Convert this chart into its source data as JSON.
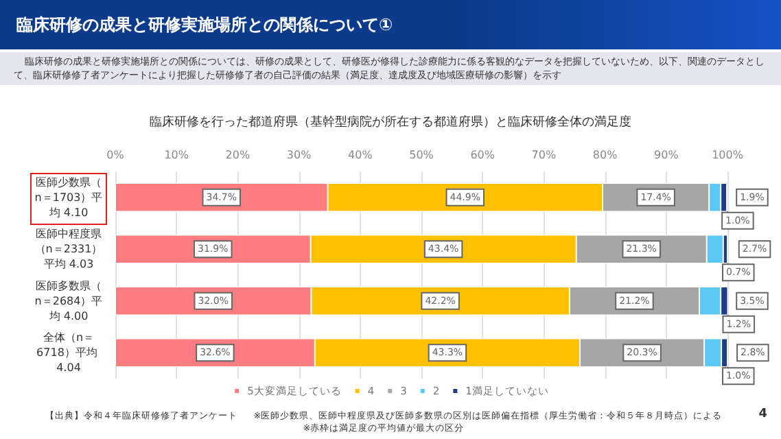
{
  "chart_data": {
    "type": "bar",
    "orientation": "horizontal",
    "stacked": true,
    "title": "臨床研修の成果と研修実施場所との関係について①",
    "subtitle": "臨床研修の成果と研修実施場所との関係については、研修の成果として、研修医が修得した診療能力に係る客観的なデータを把握していないため、以下、関連のデータとして、臨床研修修了者アンケートにより把握した研修修了者の自己評価の結果（満足度、達成度及び地域医療研修の影響）を示す",
    "annotations": [
      "臨床研修を行った都道府県（基幹型病院が所在する都道府県）と臨床研修全体の満足度",
      "【出典】令和４年臨床研修修了者アンケート",
      "※医師少数県、医師中程度県及び医師多数県の区別は医師偏在指標（厚生労働省：令和５年８月時点）による",
      "※赤枠は満足度の平均値が最大の区分",
      "4"
    ],
    "categories": [
      "医師少数県（n＝1703）平均 4.10",
      "医師中程度県（n＝2331）平均 4.03",
      "医師多数県（n＝2684）平均 4.00",
      "全体（n＝6718）平均 4.04"
    ],
    "series": [
      {
        "name": "5大変満足している",
        "color": "#ff7c80",
        "values": [
          34.7,
          31.9,
          32.0,
          32.6
        ],
        "value_labels": [
          "34.7%",
          "31.9%",
          "32.0%",
          "32.6%"
        ]
      },
      {
        "name": "4",
        "color": "#ffc000",
        "values": [
          44.9,
          43.4,
          42.2,
          43.3
        ],
        "value_labels": [
          "44.9%",
          "43.4%",
          "42.2%",
          "43.3%"
        ]
      },
      {
        "name": "3",
        "color": "#a6a6a6",
        "values": [
          17.4,
          21.3,
          21.2,
          20.3
        ],
        "value_labels": [
          "17.4%",
          "21.3%",
          "21.2%",
          "20.3%"
        ]
      },
      {
        "name": "2",
        "color": "#5bc8f5",
        "values": [
          1.9,
          2.7,
          3.5,
          2.8
        ],
        "value_labels": [
          "1.9%",
          "2.7%",
          "3.5%",
          "2.8%"
        ]
      },
      {
        "name": "1満足していない",
        "color": "#1f3c88",
        "values": [
          1.0,
          0.7,
          1.2,
          1.0
        ],
        "value_labels": [
          "1.0%",
          "0.7%",
          "1.2%",
          "1.0%"
        ]
      }
    ],
    "xlim": [
      0,
      100
    ],
    "xticks": [
      {
        "value": 0,
        "label": "0%"
      },
      {
        "value": 10,
        "label": "10%"
      },
      {
        "value": 20,
        "label": "20%"
      },
      {
        "value": 30,
        "label": "30%"
      },
      {
        "value": 40,
        "label": "40%"
      },
      {
        "value": 50,
        "label": "50%"
      },
      {
        "value": 60,
        "label": "60%"
      },
      {
        "value": 70,
        "label": "70%"
      },
      {
        "value": 80,
        "label": "80%"
      },
      {
        "value": 90,
        "label": "90%"
      },
      {
        "value": 100,
        "label": "100%"
      }
    ],
    "grid": "x",
    "legend": "bottom",
    "marker": "square"
  }
}
